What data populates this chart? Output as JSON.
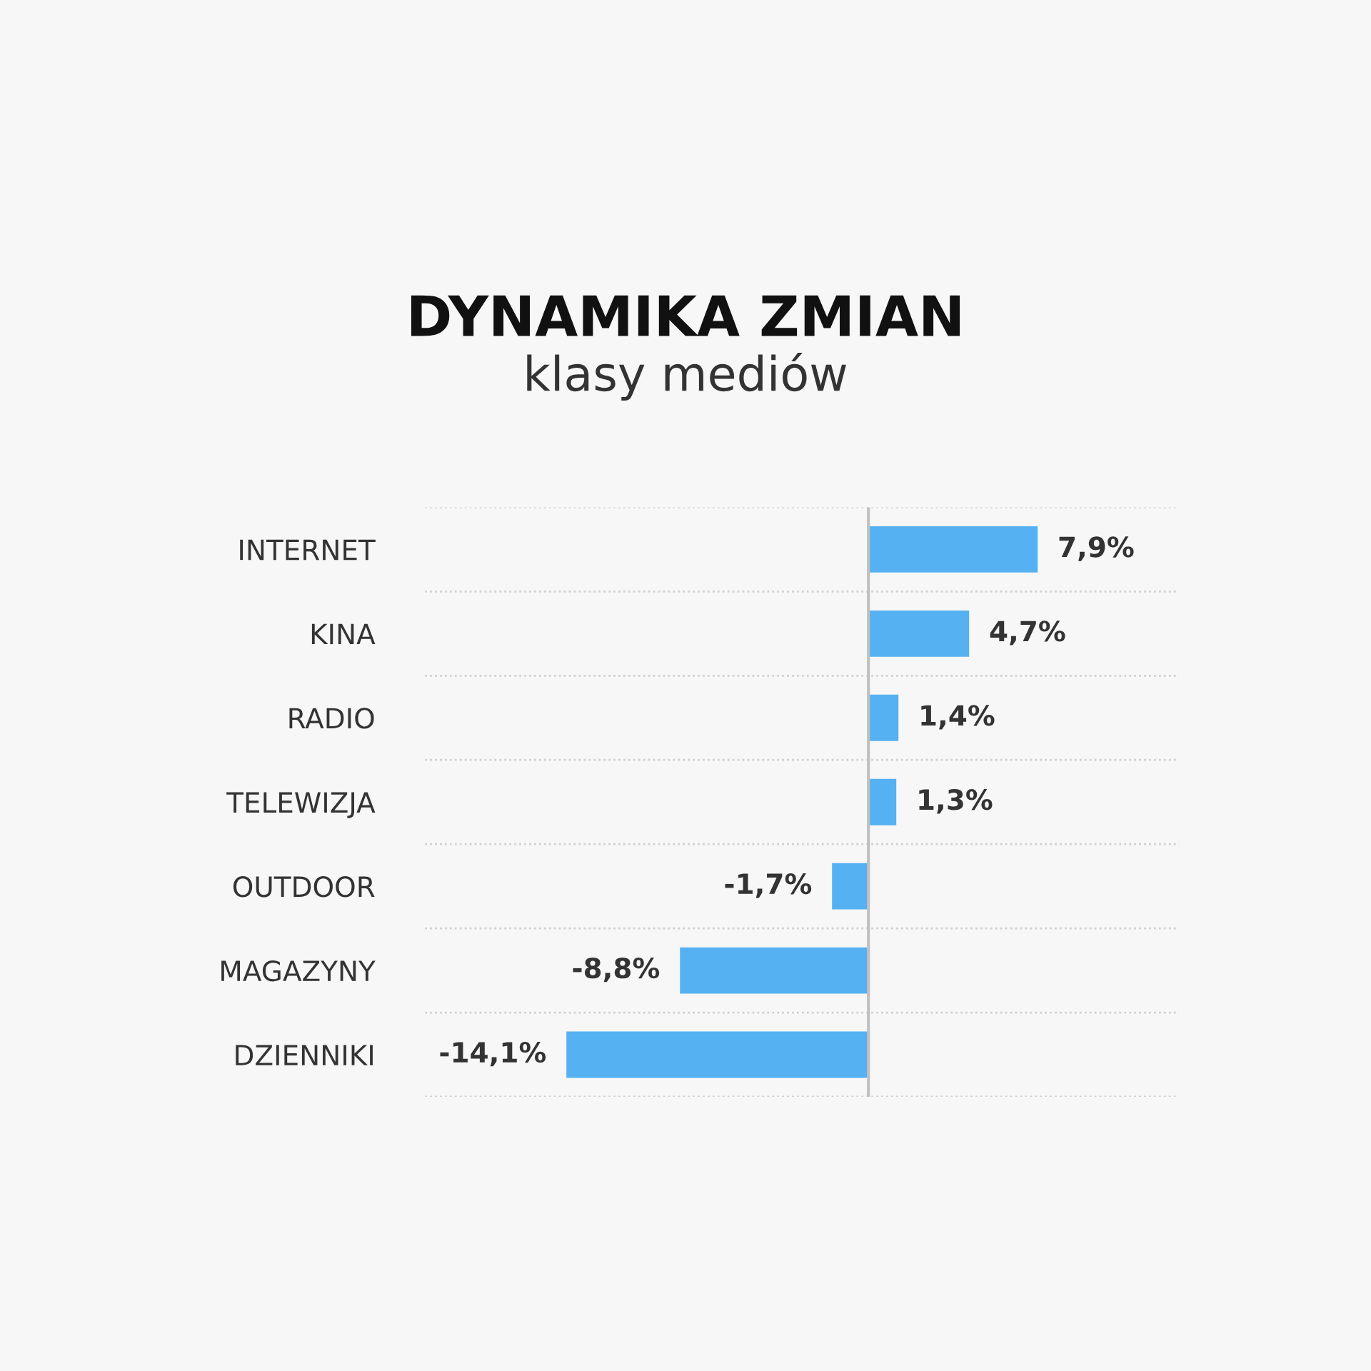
{
  "chart_data": {
    "type": "bar",
    "orientation": "horizontal",
    "title": "DYNAMIKA ZMIAN",
    "subtitle": "klasy mediów",
    "categories": [
      "INTERNET",
      "KINA",
      "RADIO",
      "TELEWIZJA",
      "OUTDOOR",
      "MAGAZYNY",
      "DZIENNIKI"
    ],
    "values": [
      7.9,
      4.7,
      1.4,
      1.3,
      -1.7,
      -8.8,
      -14.1
    ],
    "value_labels": [
      "7,9%",
      "4,7%",
      "1,4%",
      "1,3%",
      "-1,7%",
      "-8,8%",
      "-14,1%"
    ],
    "color": "#55b1f1",
    "ref_lines": [
      {
        "axis": "x",
        "value": 0,
        "color": "#c0c0c0"
      }
    ],
    "grid": "y",
    "tick_labels": "y"
  }
}
